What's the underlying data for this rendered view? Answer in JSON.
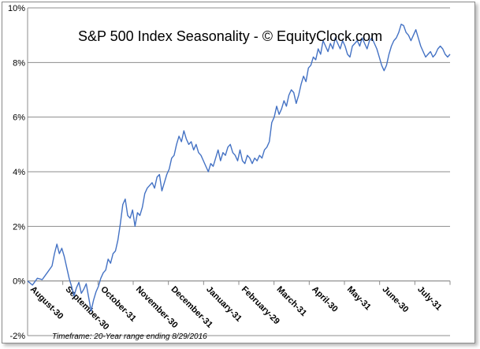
{
  "chart_data": {
    "type": "line",
    "title": "S&P 500 Index Seasonality - © EquityClock.com",
    "footnote": "Timeframe: 20-Year range ending 8/29/2016",
    "ylim": [
      -2,
      10
    ],
    "y_ticks": [
      "-2%",
      "0%",
      "2%",
      "4%",
      "6%",
      "8%",
      "10%"
    ],
    "x_tick_labels": [
      "August-30",
      "September-30",
      "October-31",
      "November-30",
      "December-31",
      "January-31",
      "February-29",
      "March-31",
      "April-30",
      "May-31",
      "June-30",
      "July-31"
    ],
    "grid": "horizontal",
    "line_color": "#4472c4",
    "series": [
      {
        "points": [
          [
            0,
            0.0
          ],
          [
            2,
            -0.15
          ],
          [
            4,
            0.1
          ],
          [
            6,
            0.05
          ],
          [
            8,
            0.3
          ],
          [
            10,
            0.55
          ],
          [
            11,
            1.0
          ],
          [
            12,
            1.35
          ],
          [
            13,
            1.0
          ],
          [
            14,
            1.2
          ],
          [
            15,
            0.9
          ],
          [
            16,
            0.5
          ],
          [
            17,
            0.1
          ],
          [
            18,
            -0.2
          ],
          [
            19,
            -0.55
          ],
          [
            20,
            -0.25
          ],
          [
            21,
            -0.05
          ],
          [
            22,
            -0.45
          ],
          [
            23,
            -0.3
          ],
          [
            24,
            -0.1
          ],
          [
            25,
            -0.6
          ],
          [
            26,
            -1.1
          ],
          [
            27,
            -0.7
          ],
          [
            28,
            -0.4
          ],
          [
            29,
            -0.2
          ],
          [
            30,
            0.1
          ],
          [
            31,
            0.3
          ],
          [
            32,
            0.4
          ],
          [
            33,
            0.8
          ],
          [
            34,
            0.65
          ],
          [
            35,
            1.0
          ],
          [
            36,
            1.1
          ],
          [
            37,
            1.5
          ],
          [
            38,
            2.1
          ],
          [
            39,
            2.8
          ],
          [
            40,
            3.0
          ],
          [
            41,
            2.4
          ],
          [
            42,
            2.3
          ],
          [
            43,
            2.6
          ],
          [
            44,
            2.0
          ],
          [
            45,
            2.5
          ],
          [
            46,
            2.4
          ],
          [
            47,
            2.7
          ],
          [
            48,
            3.2
          ],
          [
            49,
            3.4
          ],
          [
            50,
            3.5
          ],
          [
            51,
            3.6
          ],
          [
            52,
            3.4
          ],
          [
            53,
            3.8
          ],
          [
            54,
            3.9
          ],
          [
            55,
            3.3
          ],
          [
            56,
            3.6
          ],
          [
            57,
            3.9
          ],
          [
            58,
            4.1
          ],
          [
            59,
            4.5
          ],
          [
            60,
            4.6
          ],
          [
            61,
            5.0
          ],
          [
            62,
            5.3
          ],
          [
            63,
            5.1
          ],
          [
            64,
            5.5
          ],
          [
            65,
            5.2
          ],
          [
            66,
            5.0
          ],
          [
            67,
            5.1
          ],
          [
            68,
            4.8
          ],
          [
            69,
            5.0
          ],
          [
            70,
            4.7
          ],
          [
            71,
            4.6
          ],
          [
            72,
            4.4
          ],
          [
            73,
            4.2
          ],
          [
            74,
            4.0
          ],
          [
            75,
            4.3
          ],
          [
            76,
            4.2
          ],
          [
            77,
            4.5
          ],
          [
            78,
            4.8
          ],
          [
            79,
            4.4
          ],
          [
            80,
            4.7
          ],
          [
            81,
            4.6
          ],
          [
            82,
            4.9
          ],
          [
            83,
            5.0
          ],
          [
            84,
            4.7
          ],
          [
            85,
            4.6
          ],
          [
            86,
            4.4
          ],
          [
            87,
            4.8
          ],
          [
            88,
            4.4
          ],
          [
            89,
            4.3
          ],
          [
            90,
            4.6
          ],
          [
            91,
            4.5
          ],
          [
            92,
            4.3
          ],
          [
            93,
            4.5
          ],
          [
            94,
            4.4
          ],
          [
            95,
            4.6
          ],
          [
            96,
            4.5
          ],
          [
            97,
            4.8
          ],
          [
            98,
            4.9
          ],
          [
            99,
            5.1
          ],
          [
            100,
            5.8
          ],
          [
            101,
            6.0
          ],
          [
            102,
            6.4
          ],
          [
            103,
            6.1
          ],
          [
            104,
            6.3
          ],
          [
            105,
            6.6
          ],
          [
            106,
            6.4
          ],
          [
            107,
            6.8
          ],
          [
            108,
            7.0
          ],
          [
            109,
            6.9
          ],
          [
            110,
            6.5
          ],
          [
            111,
            6.8
          ],
          [
            112,
            7.2
          ],
          [
            113,
            7.5
          ],
          [
            114,
            7.3
          ],
          [
            115,
            7.8
          ],
          [
            116,
            7.9
          ],
          [
            117,
            8.2
          ],
          [
            118,
            8.1
          ],
          [
            119,
            8.5
          ],
          [
            120,
            8.3
          ],
          [
            121,
            8.8
          ],
          [
            122,
            8.6
          ],
          [
            123,
            8.4
          ],
          [
            124,
            8.7
          ],
          [
            125,
            8.5
          ],
          [
            126,
            8.9
          ],
          [
            127,
            8.7
          ],
          [
            128,
            8.5
          ],
          [
            129,
            8.8
          ],
          [
            130,
            8.6
          ],
          [
            131,
            8.3
          ],
          [
            132,
            8.2
          ],
          [
            133,
            8.6
          ],
          [
            134,
            8.7
          ],
          [
            135,
            8.8
          ],
          [
            136,
            8.6
          ],
          [
            137,
            8.9
          ],
          [
            138,
            8.7
          ],
          [
            139,
            8.5
          ],
          [
            140,
            8.8
          ],
          [
            141,
            8.9
          ],
          [
            142,
            8.7
          ],
          [
            143,
            8.5
          ],
          [
            144,
            8.2
          ],
          [
            145,
            7.9
          ],
          [
            146,
            7.7
          ],
          [
            147,
            7.9
          ],
          [
            148,
            8.3
          ],
          [
            149,
            8.6
          ],
          [
            150,
            8.8
          ],
          [
            151,
            8.9
          ],
          [
            152,
            9.1
          ],
          [
            153,
            9.4
          ],
          [
            154,
            9.35
          ],
          [
            155,
            9.1
          ],
          [
            156,
            9.0
          ],
          [
            157,
            8.8
          ],
          [
            158,
            9.0
          ],
          [
            159,
            9.2
          ],
          [
            160,
            8.9
          ],
          [
            161,
            8.6
          ],
          [
            162,
            8.4
          ],
          [
            163,
            8.2
          ],
          [
            164,
            8.3
          ],
          [
            165,
            8.4
          ],
          [
            166,
            8.2
          ],
          [
            167,
            8.3
          ],
          [
            168,
            8.5
          ],
          [
            169,
            8.6
          ],
          [
            170,
            8.5
          ],
          [
            171,
            8.3
          ],
          [
            172,
            8.2
          ],
          [
            173,
            8.3
          ]
        ]
      }
    ]
  }
}
